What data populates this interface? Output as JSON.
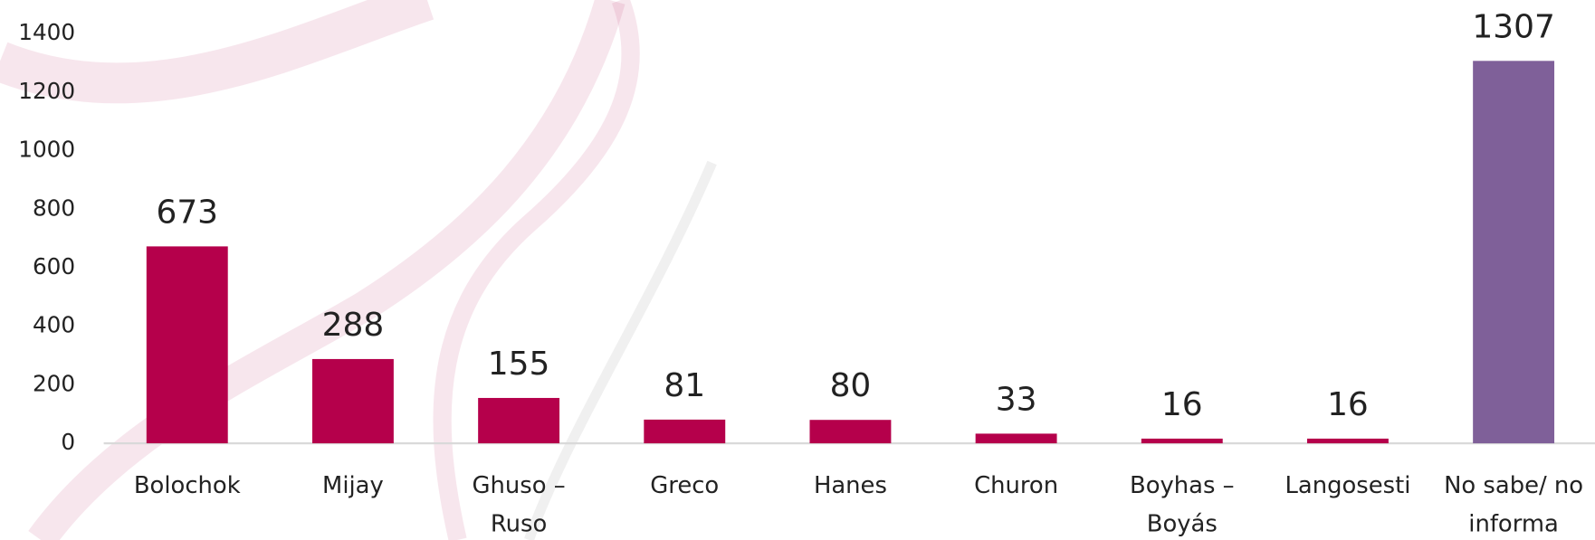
{
  "chart_data": {
    "type": "bar",
    "categories": [
      [
        "Bolochok"
      ],
      [
        "Mijay"
      ],
      [
        "Ghuso –",
        "Ruso"
      ],
      [
        "Greco"
      ],
      [
        "Hanes"
      ],
      [
        "Churon"
      ],
      [
        "Boyhas –",
        "Boyás"
      ],
      [
        "Langosesti"
      ],
      [
        "No sabe/ no",
        "informa"
      ]
    ],
    "values": [
      673,
      288,
      155,
      81,
      80,
      33,
      16,
      16,
      1307
    ],
    "colors": [
      "#b5004b",
      "#b5004b",
      "#b5004b",
      "#b5004b",
      "#b5004b",
      "#b5004b",
      "#b5004b",
      "#b5004b",
      "#7f6099"
    ],
    "ylim": [
      0,
      1400
    ],
    "yticks": [
      0,
      200,
      400,
      600,
      800,
      1000,
      1200,
      1400
    ],
    "grid": false
  }
}
